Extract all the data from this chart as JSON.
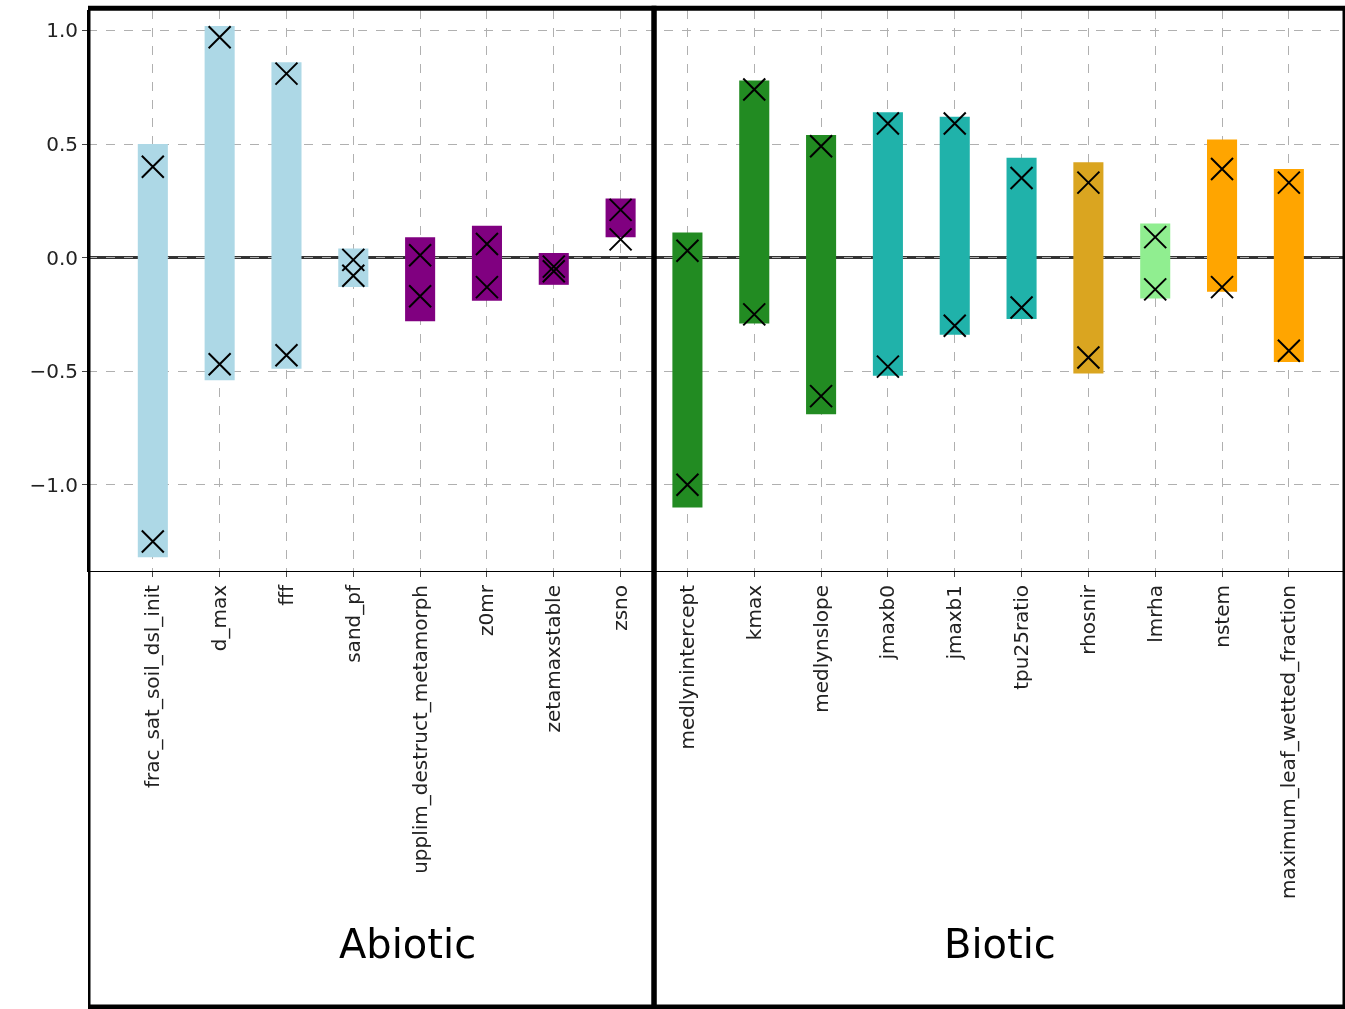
{
  "chart_data": {
    "type": "bar",
    "categories": [
      "frac_sat_soil_dsl_init",
      "d_max",
      "fff",
      "sand_pf",
      "upplim_destruct_metamorph",
      "z0mr",
      "zetamaxstable",
      "zsno",
      "medlynintercept",
      "kmax",
      "medlynslope",
      "jmaxb0",
      "jmaxb1",
      "tpu25ratio",
      "rhosnir",
      "lmrha",
      "nstem",
      "maximum_leaf_wetted_fraction"
    ],
    "series": [
      {
        "base": [
          -1.32,
          -0.54,
          -0.49,
          -0.13,
          -0.28,
          -0.19,
          -0.12,
          0.09,
          -1.1,
          -0.29,
          -0.69,
          -0.52,
          -0.34,
          -0.27,
          -0.51,
          -0.18,
          -0.15,
          -0.46
        ],
        "values": [
          1.82,
          1.56,
          1.35,
          0.17,
          0.37,
          0.33,
          0.14,
          0.17,
          1.21,
          1.07,
          1.23,
          1.16,
          0.96,
          0.71,
          0.93,
          0.33,
          0.67,
          0.85
        ],
        "colors": [
          "#add8e6",
          "#add8e6",
          "#add8e6",
          "#add8e6",
          "#800080",
          "#800080",
          "#800080",
          "#800080",
          "#228b22",
          "#228b22",
          "#228b22",
          "#20b2aa",
          "#20b2aa",
          "#20b2aa",
          "#daa520",
          "#90ee90",
          "#ffa500",
          "#ffa500"
        ]
      },
      {
        "type": "scatter",
        "marker": "cross",
        "color": "#000000",
        "values": [
          0.4,
          0.97,
          0.81,
          -0.01,
          0.01,
          0.06,
          -0.04,
          0.21,
          0.03,
          0.74,
          0.49,
          0.59,
          0.59,
          0.35,
          0.33,
          0.09,
          0.39,
          0.33
        ]
      },
      {
        "type": "scatter",
        "marker": "cross",
        "color": "#000000",
        "values": [
          -1.25,
          -0.47,
          -0.43,
          -0.08,
          -0.17,
          -0.13,
          -0.06,
          0.08,
          -1.0,
          -0.25,
          -0.61,
          -0.48,
          -0.3,
          -0.22,
          -0.44,
          -0.14,
          -0.13,
          -0.41
        ]
      }
    ],
    "ylim": [
      -1.38,
      1.09
    ],
    "yticks": [
      {
        "value": -1,
        "label": "−1.0"
      },
      {
        "value": -0.5,
        "label": "−0.5"
      },
      {
        "value": 0,
        "label": "0.0"
      },
      {
        "value": 0.5,
        "label": "0.5"
      },
      {
        "value": 1,
        "label": "1.0"
      }
    ],
    "ref_lines": [
      {
        "axis": "y",
        "value": 0,
        "color": "#333333"
      }
    ],
    "grid": true,
    "annotations": [
      "Abiotic",
      "Biotic"
    ]
  }
}
